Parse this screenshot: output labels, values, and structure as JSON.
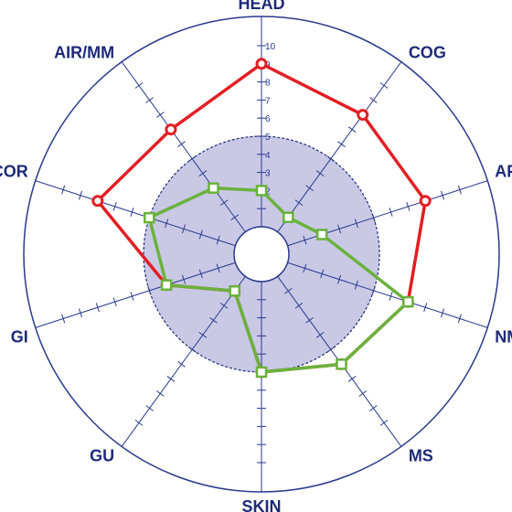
{
  "chart_data": {
    "type": "radar",
    "title": "",
    "categories": [
      "HEAD",
      "COG",
      "AFF",
      "NM",
      "MS",
      "SKIN",
      "GU",
      "GI",
      "COR",
      "AIR/MM"
    ],
    "rlim": [
      0,
      10
    ],
    "r_ticks": [
      2,
      3,
      4,
      5,
      6,
      7,
      8,
      9,
      10
    ],
    "shaded_region": {
      "from": 0,
      "to": 5,
      "color": "#c9c9e6",
      "boundary": "dashed"
    },
    "grid": true,
    "series": [
      {
        "marker": "circle",
        "color": "#e31e24",
        "values": [
          9,
          8,
          8,
          7,
          6,
          5,
          1,
          4,
          8,
          7
        ]
      },
      {
        "marker": "square",
        "color": "#6ab23d",
        "values": [
          2,
          1,
          2,
          7,
          6,
          5,
          1,
          4,
          5,
          3
        ]
      }
    ]
  }
}
